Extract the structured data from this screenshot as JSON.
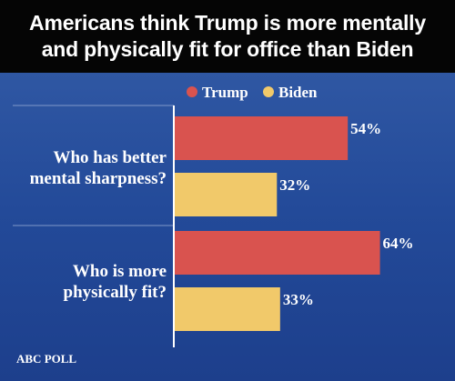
{
  "header": {
    "title_line1": "Americans think Trump is more mentally",
    "title_line2": "and physically fit for office than Biden"
  },
  "source": "ABC POLL",
  "colors": {
    "trump": "#d9534f",
    "biden": "#f1c96a",
    "background": "#234a99",
    "title_bg": "#050505"
  },
  "chart_data": {
    "type": "bar",
    "orientation": "horizontal",
    "categories": [
      [
        "Who has better",
        "mental sharpness?"
      ],
      [
        "Who is more",
        "physically fit?"
      ]
    ],
    "series": [
      {
        "name": "Trump",
        "values": [
          54,
          64
        ],
        "labels": [
          "54%",
          "64%"
        ],
        "color": "#d9534f"
      },
      {
        "name": "Biden",
        "values": [
          32,
          33
        ],
        "labels": [
          "32%",
          "33%"
        ],
        "color": "#f1c96a"
      }
    ],
    "unit": "%",
    "xlim": [
      0,
      85
    ],
    "grid": false,
    "legend": "top"
  }
}
